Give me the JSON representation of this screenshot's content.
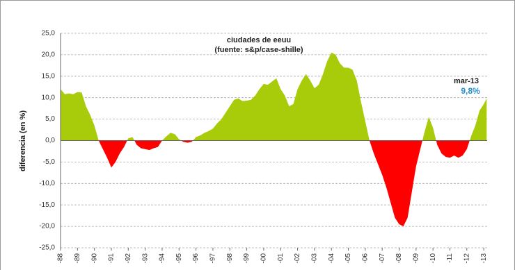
{
  "chart_data": {
    "type": "area",
    "title": "ciudades de eeuu",
    "subtitle": "(fuente:  s&p/case-shille)",
    "y_label": "diferencia (en %)",
    "annotation": "mar-13",
    "annotation_value": {
      "value": 9.8,
      "label": "9,8%"
    },
    "positive_color": "#a8cc0a",
    "negative_color": "#ff0000",
    "annotation_value_color": "#1f8fd0",
    "grid": true,
    "x": [
      1988,
      1988.25,
      1988.5,
      1988.75,
      1989,
      1989.25,
      1989.5,
      1989.75,
      1990,
      1990.25,
      1990.5,
      1990.75,
      1991,
      1991.25,
      1991.5,
      1991.75,
      1992,
      1992.25,
      1992.5,
      1992.75,
      1993,
      1993.25,
      1993.5,
      1993.75,
      1994,
      1994.25,
      1994.5,
      1994.75,
      1995,
      1995.25,
      1995.5,
      1995.75,
      1996,
      1996.25,
      1996.5,
      1996.75,
      1997,
      1997.25,
      1997.5,
      1997.75,
      1998,
      1998.25,
      1998.5,
      1998.75,
      1999,
      1999.25,
      1999.5,
      1999.75,
      2000,
      2000.25,
      2000.5,
      2000.75,
      2001,
      2001.25,
      2001.5,
      2001.75,
      2002,
      2002.25,
      2002.5,
      2002.75,
      2003,
      2003.25,
      2003.5,
      2003.75,
      2004,
      2004.25,
      2004.5,
      2004.75,
      2005,
      2005.25,
      2005.5,
      2005.75,
      2006,
      2006.25,
      2006.5,
      2006.75,
      2007,
      2007.25,
      2007.5,
      2007.75,
      2008,
      2008.25,
      2008.5,
      2008.75,
      2009,
      2009.25,
      2009.5,
      2009.75,
      2010,
      2010.25,
      2010.5,
      2010.75,
      2011,
      2011.25,
      2011.5,
      2011.75,
      2012,
      2012.25,
      2012.5,
      2012.75,
      2013,
      2013.17
    ],
    "values": [
      12,
      10.8,
      11,
      10.8,
      11.3,
      11.2,
      8,
      6,
      3.5,
      0,
      -2,
      -4,
      -6.3,
      -5,
      -3,
      -1.5,
      0.5,
      0.8,
      -1,
      -1.8,
      -2,
      -2.2,
      -1.8,
      -1.5,
      0,
      1,
      1.8,
      1.5,
      0.3,
      -0.3,
      -0.5,
      -0.3,
      0.8,
      1.2,
      1.8,
      2.2,
      2.8,
      4,
      5,
      6.5,
      8,
      9.5,
      9.8,
      9.2,
      9.3,
      9.5,
      10.5,
      12,
      13.2,
      13,
      13.8,
      14.5,
      12,
      10.5,
      8,
      8.5,
      12,
      14,
      15.5,
      14,
      12.2,
      13,
      15.5,
      18.5,
      20.5,
      20,
      18,
      17,
      17,
      16.5,
      14,
      9,
      4.5,
      0,
      -3,
      -5.5,
      -8,
      -11,
      -14.5,
      -18,
      -19.5,
      -20,
      -18,
      -12,
      -6,
      -2,
      2,
      5.5,
      3,
      -1,
      -3,
      -3.8,
      -4,
      -3.5,
      -4,
      -3.5,
      -2,
      1,
      3.5,
      7,
      8.5,
      9.8
    ],
    "xlim": [
      1988,
      2013.2
    ],
    "ylim": [
      -25,
      25
    ],
    "yticks": [
      {
        "value": 25,
        "label": "25,0"
      },
      {
        "value": 20,
        "label": "20,0"
      },
      {
        "value": 15,
        "label": "15,0"
      },
      {
        "value": 10,
        "label": "10,0"
      },
      {
        "value": 5,
        "label": "5,0"
      },
      {
        "value": 0,
        "label": "0,0"
      },
      {
        "value": -5,
        "label": "-5,0"
      },
      {
        "value": -10,
        "label": "-10,0"
      },
      {
        "value": -15,
        "label": "-15,0"
      },
      {
        "value": -20,
        "label": "-20,0"
      },
      {
        "value": -25,
        "label": "-25,0"
      }
    ],
    "xticks": [
      {
        "value": 1988,
        "label": "-88"
      },
      {
        "value": 1989,
        "label": "-89"
      },
      {
        "value": 1990,
        "label": "-90"
      },
      {
        "value": 1991,
        "label": "-91"
      },
      {
        "value": 1992,
        "label": "-92"
      },
      {
        "value": 1993,
        "label": "-93"
      },
      {
        "value": 1994,
        "label": "-94"
      },
      {
        "value": 1995,
        "label": "-95"
      },
      {
        "value": 1996,
        "label": "-96"
      },
      {
        "value": 1997,
        "label": "-97"
      },
      {
        "value": 1998,
        "label": "-98"
      },
      {
        "value": 1999,
        "label": "-99"
      },
      {
        "value": 2000,
        "label": "-00"
      },
      {
        "value": 2001,
        "label": "-01"
      },
      {
        "value": 2002,
        "label": "-02"
      },
      {
        "value": 2003,
        "label": "-03"
      },
      {
        "value": 2004,
        "label": "-04"
      },
      {
        "value": 2005,
        "label": "-05"
      },
      {
        "value": 2006,
        "label": "-06"
      },
      {
        "value": 2007,
        "label": "-07"
      },
      {
        "value": 2008,
        "label": "-08"
      },
      {
        "value": 2009,
        "label": "-09"
      },
      {
        "value": 2010,
        "label": "-10"
      },
      {
        "value": 2011,
        "label": "-11"
      },
      {
        "value": 2012,
        "label": "-12"
      },
      {
        "value": 2013,
        "label": "-13"
      }
    ]
  }
}
